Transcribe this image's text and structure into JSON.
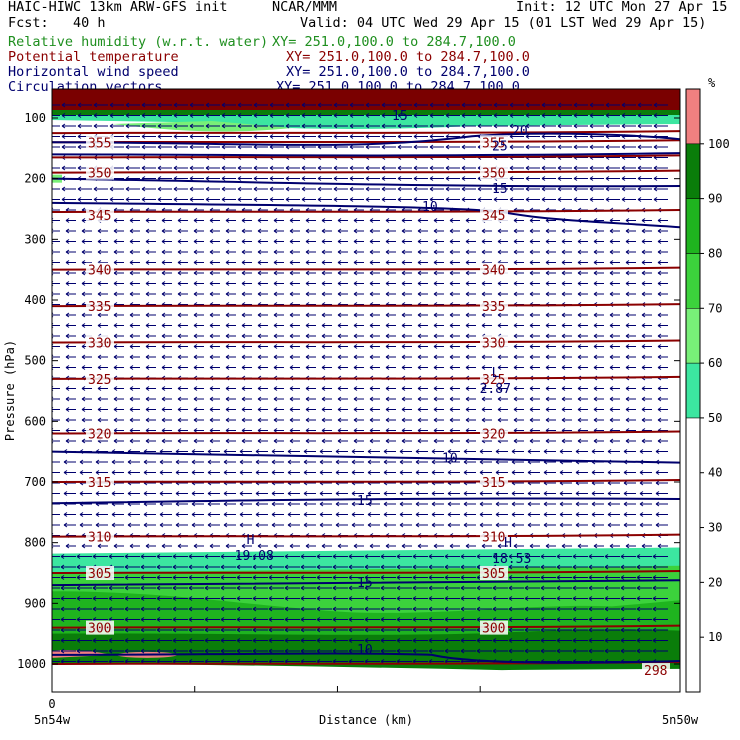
{
  "header": {
    "line1_left": "HAIC-HIWC 13km ARW-GFS init",
    "line1_mid": "NCAR/MMM",
    "line1_right": "Init: 12 UTC Mon 27 Apr 15",
    "line2_left": "Fcst:   40 h",
    "line2_right": "Valid: 04 UTC Wed 29 Apr 15 (01 LST Wed 29 Apr 15)",
    "fields": [
      {
        "name": "Relative humidity (w.r.t. water)",
        "xy": "XY= 251.0,100.0 to 284.7,100.0",
        "color": "#1f8f1f"
      },
      {
        "name": "Potential temperature",
        "xy": "XY= 251.0,100.0 to 284.7,100.0",
        "color": "#8b0000"
      },
      {
        "name": "Horizontal wind speed",
        "xy": "XY= 251.0,100.0 to 284.7,100.0",
        "color": "#00006e"
      },
      {
        "name": "Circulation vectors",
        "xy": "XY= 251.0,100.0 to 284.7,100.0",
        "color": "#00006e"
      }
    ]
  },
  "chart_data": {
    "type": "heatmap",
    "ylabel": "Pressure (hPa)",
    "xlabel": "Distance (km)",
    "y_ticks": [
      100,
      200,
      300,
      400,
      500,
      600,
      700,
      800,
      900,
      1000
    ],
    "x_tick_zero": "0",
    "x_end_labels": [
      "5n54w",
      "5n50w"
    ],
    "colorbar": {
      "unit": "%",
      "ticks": [
        10,
        20,
        30,
        40,
        50,
        60,
        70,
        80,
        90,
        100
      ],
      "bins": [
        {
          "from": 0,
          "to": 50,
          "color": "#ffffff"
        },
        {
          "from": 50,
          "to": 60,
          "color": "#3ce6a0"
        },
        {
          "from": 60,
          "to": 70,
          "color": "#78f078"
        },
        {
          "from": 70,
          "to": 80,
          "color": "#3cd23c"
        },
        {
          "from": 80,
          "to": 90,
          "color": "#1fb41f"
        },
        {
          "from": 90,
          "to": 100,
          "color": "#0a7d0a"
        },
        {
          "from": 100,
          "to": 110,
          "color": "#f08080"
        }
      ]
    },
    "theta_labels": [
      {
        "value": "355",
        "p": 140
      },
      {
        "value": "350",
        "p": 190
      },
      {
        "value": "345",
        "p": 260
      },
      {
        "value": "340",
        "p": 350
      },
      {
        "value": "335",
        "p": 410
      },
      {
        "value": "330",
        "p": 470
      },
      {
        "value": "325",
        "p": 530
      },
      {
        "value": "320",
        "p": 620
      },
      {
        "value": "315",
        "p": 700
      },
      {
        "value": "310",
        "p": 790
      },
      {
        "value": "305",
        "p": 850
      },
      {
        "value": "300",
        "p": 940
      },
      {
        "value": "298",
        "p": 1010
      }
    ],
    "wind_labels": [
      {
        "value": "15",
        "p": 95
      },
      {
        "value": "20",
        "p": 120
      },
      {
        "value": "25",
        "p": 145
      },
      {
        "value": "15",
        "p": 215
      },
      {
        "value": "10",
        "p": 245
      },
      {
        "value": "10",
        "p": 660
      },
      {
        "value": "15",
        "p": 730
      },
      {
        "value": "15",
        "p": 865
      },
      {
        "value": "10",
        "p": 975
      }
    ],
    "extrema": [
      {
        "symbol": "H",
        "value": "19.08",
        "x_frac": 0.31,
        "p": 815
      },
      {
        "symbol": "H",
        "value": "18.53",
        "x_frac": 0.72,
        "p": 820
      },
      {
        "symbol": "L",
        "value": "2.87",
        "x_frac": 0.7,
        "p": 540
      }
    ]
  }
}
